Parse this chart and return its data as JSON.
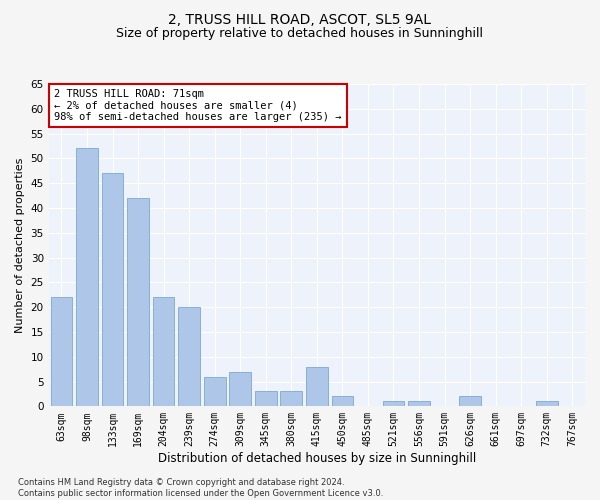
{
  "title": "2, TRUSS HILL ROAD, ASCOT, SL5 9AL",
  "subtitle": "Size of property relative to detached houses in Sunninghill",
  "xlabel": "Distribution of detached houses by size in Sunninghill",
  "ylabel": "Number of detached properties",
  "categories": [
    "63sqm",
    "98sqm",
    "133sqm",
    "169sqm",
    "204sqm",
    "239sqm",
    "274sqm",
    "309sqm",
    "345sqm",
    "380sqm",
    "415sqm",
    "450sqm",
    "485sqm",
    "521sqm",
    "556sqm",
    "591sqm",
    "626sqm",
    "661sqm",
    "697sqm",
    "732sqm",
    "767sqm"
  ],
  "values": [
    22,
    52,
    47,
    42,
    22,
    20,
    6,
    7,
    3,
    3,
    8,
    2,
    0,
    1,
    1,
    0,
    2,
    0,
    0,
    1,
    0
  ],
  "bar_color": "#aec6e8",
  "bar_edge_color": "#7aaad0",
  "annotation_box_color": "#cc0000",
  "annotation_text": "2 TRUSS HILL ROAD: 71sqm\n← 2% of detached houses are smaller (4)\n98% of semi-detached houses are larger (235) →",
  "ylim": [
    0,
    65
  ],
  "yticks": [
    0,
    5,
    10,
    15,
    20,
    25,
    30,
    35,
    40,
    45,
    50,
    55,
    60,
    65
  ],
  "footnote": "Contains HM Land Registry data © Crown copyright and database right 2024.\nContains public sector information licensed under the Open Government Licence v3.0.",
  "bg_color": "#eef2fa",
  "grid_color": "#ffffff",
  "fig_bg_color": "#f5f5f5",
  "title_fontsize": 10,
  "subtitle_fontsize": 9,
  "tick_fontsize": 7,
  "ylabel_fontsize": 8,
  "xlabel_fontsize": 8.5,
  "annotation_fontsize": 7.5,
  "footnote_fontsize": 6
}
